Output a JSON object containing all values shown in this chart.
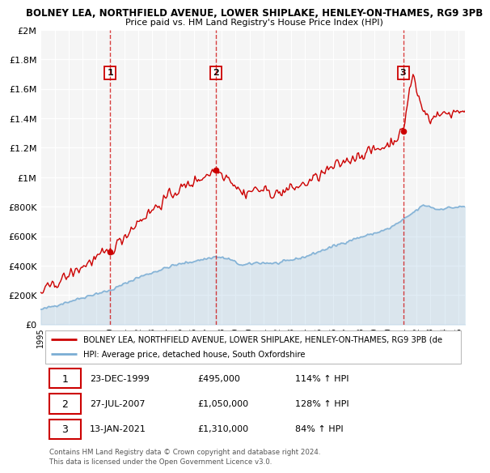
{
  "title1": "BOLNEY LEA, NORTHFIELD AVENUE, LOWER SHIPLAKE, HENLEY-ON-THAMES, RG9 3PB",
  "title2": "Price paid vs. HM Land Registry's House Price Index (HPI)",
  "ylabel_ticks": [
    "£0",
    "£200K",
    "£400K",
    "£600K",
    "£800K",
    "£1M",
    "£1.2M",
    "£1.4M",
    "£1.6M",
    "£1.8M",
    "£2M"
  ],
  "ytick_vals": [
    0,
    200000,
    400000,
    600000,
    800000,
    1000000,
    1200000,
    1400000,
    1600000,
    1800000,
    2000000
  ],
  "sale_dates_num": [
    1999.98,
    2007.57,
    2021.04
  ],
  "sale_prices": [
    495000,
    1050000,
    1310000
  ],
  "sale_labels": [
    "1",
    "2",
    "3"
  ],
  "sale_dates_str": [
    "23-DEC-1999",
    "27-JUL-2007",
    "13-JAN-2021"
  ],
  "sale_pct": [
    "114%",
    "128%",
    "84%"
  ],
  "property_line_color": "#cc0000",
  "hpi_line_color": "#7aadd4",
  "legend_property": "BOLNEY LEA, NORTHFIELD AVENUE, LOWER SHIPLAKE, HENLEY-ON-THAMES, RG9 3PB (de",
  "legend_hpi": "HPI: Average price, detached house, South Oxfordshire",
  "footer1": "Contains HM Land Registry data © Crown copyright and database right 2024.",
  "footer2": "This data is licensed under the Open Government Licence v3.0.",
  "background_color": "#ffffff",
  "plot_bg_color": "#f5f5f5",
  "grid_color": "#ffffff",
  "xmin": 1995.0,
  "xmax": 2025.5,
  "ymin": 0,
  "ymax": 2000000
}
